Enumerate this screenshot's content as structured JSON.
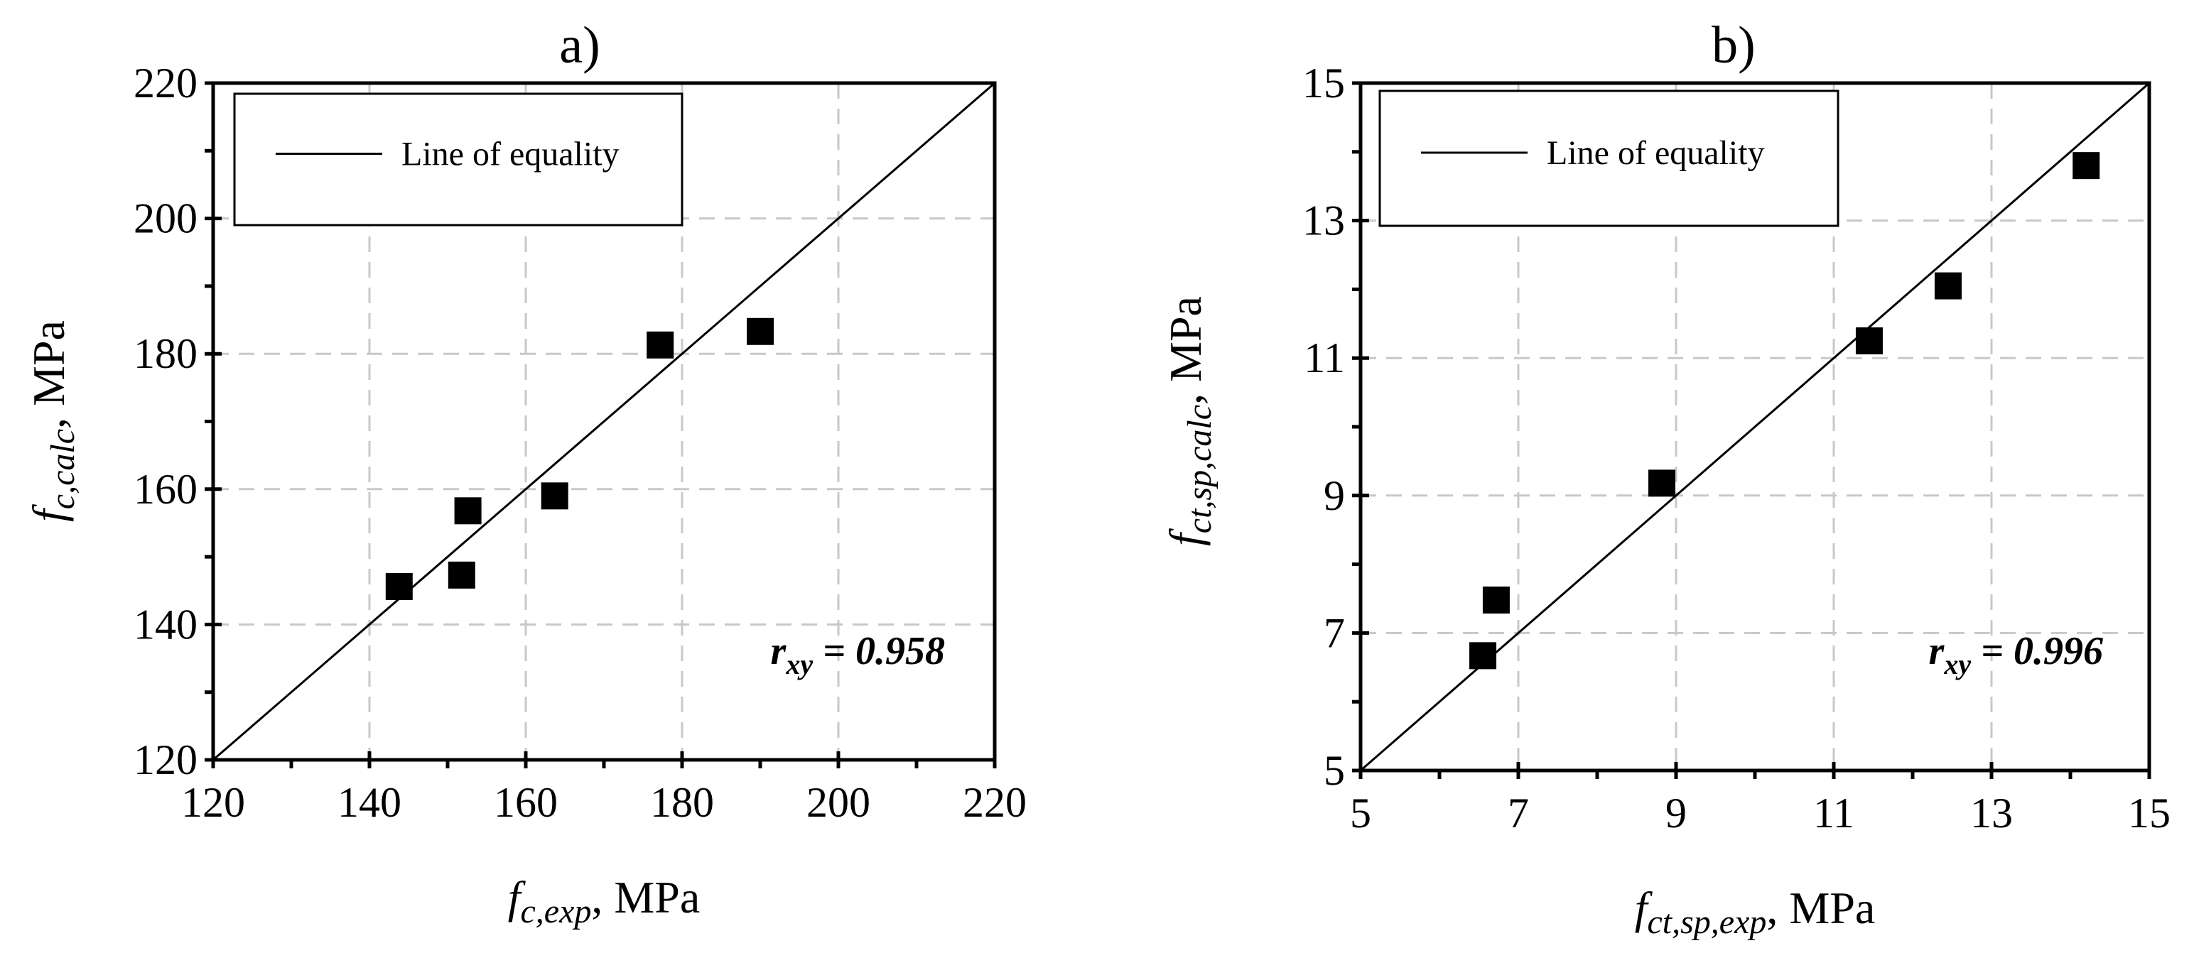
{
  "chart_data": [
    {
      "type": "scatter",
      "panel_label": "a)",
      "title": "a)",
      "x_label": {
        "base": "f",
        "sub": "c,exp",
        "unit": ", MPa"
      },
      "y_label": {
        "base": "f",
        "sub": "c,calc",
        "unit": ", MPa"
      },
      "xlim": [
        120,
        220
      ],
      "ylim": [
        120,
        220
      ],
      "x_ticks": [
        120,
        140,
        160,
        180,
        200,
        220
      ],
      "y_ticks": [
        120,
        140,
        160,
        180,
        200,
        220
      ],
      "x_tick_labels": [
        "120",
        "140",
        "160",
        "180",
        "200",
        "220"
      ],
      "y_tick_labels": [
        "120",
        "140",
        "160",
        "180",
        "200",
        "220"
      ],
      "grid": true,
      "legend": {
        "entry": "Line of equality",
        "position": "top-left"
      },
      "annotation": {
        "text": "r",
        "sub": "xy",
        "value": " = 0.958"
      },
      "series": [
        {
          "marker": "square",
          "points": [
            {
              "x": 143.8,
              "y": 145.6
            },
            {
              "x": 151.8,
              "y": 147.3
            },
            {
              "x": 152.6,
              "y": 156.8
            },
            {
              "x": 163.7,
              "y": 159.0
            },
            {
              "x": 177.2,
              "y": 181.3
            },
            {
              "x": 190.0,
              "y": 183.3
            }
          ]
        }
      ],
      "reference_line": {
        "from": [
          120,
          120
        ],
        "to": [
          220,
          220
        ]
      }
    },
    {
      "type": "scatter",
      "panel_label": "b)",
      "title": "b)",
      "x_label": {
        "base": "f",
        "sub": "ct,sp,exp",
        "unit": ", MPa"
      },
      "y_label": {
        "base": "f",
        "sub": "ct,sp,calc",
        "unit": ", MPa"
      },
      "xlim": [
        5,
        15
      ],
      "ylim": [
        5,
        15
      ],
      "x_ticks": [
        5,
        7,
        9,
        11,
        13,
        15
      ],
      "y_ticks": [
        5,
        7,
        9,
        11,
        13,
        15
      ],
      "x_tick_labels": [
        "5",
        "7",
        "9",
        "11",
        "13",
        "15"
      ],
      "y_tick_labels": [
        "5",
        "7",
        "9",
        "11",
        "13",
        "15"
      ],
      "grid": true,
      "legend": {
        "entry": "Line of equality",
        "position": "top-left"
      },
      "annotation": {
        "text": "r",
        "sub": "xy",
        "value": " = 0.996"
      },
      "series": [
        {
          "marker": "square",
          "points": [
            {
              "x": 6.55,
              "y": 6.67
            },
            {
              "x": 6.72,
              "y": 7.48
            },
            {
              "x": 8.82,
              "y": 9.18
            },
            {
              "x": 11.45,
              "y": 11.25
            },
            {
              "x": 12.45,
              "y": 12.05
            },
            {
              "x": 14.2,
              "y": 13.8
            }
          ]
        }
      ],
      "reference_line": {
        "from": [
          5,
          5
        ],
        "to": [
          15,
          15
        ]
      }
    }
  ]
}
